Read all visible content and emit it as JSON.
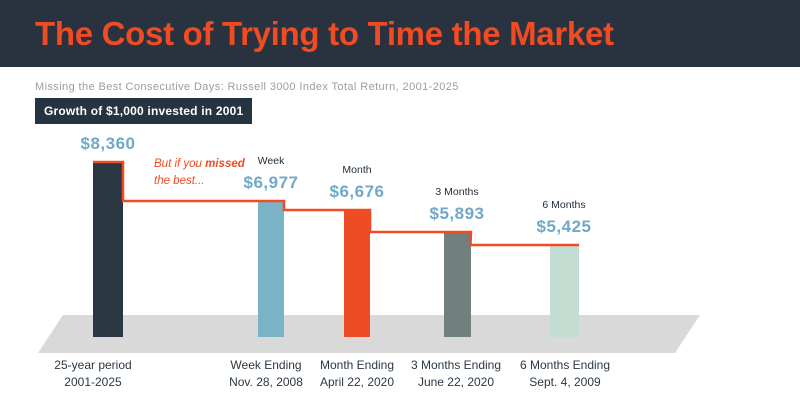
{
  "header": {
    "bg_color": "#28333f",
    "title_color": "#f04b23"
  },
  "annotation": {
    "prefix": "But if you ",
    "bold": "missed",
    "suffix": " the best...",
    "color": "#f04b23"
  },
  "chart_data": {
    "type": "bar",
    "title": "The Cost of Trying to Time the Market",
    "subtitle": "Missing the Best Consecutive Days: Russell 3000 Index Total Return, 2001-2025",
    "note": "Growth of $1,000 invested in 2001",
    "categories": [
      [
        "25-year period",
        "2001-2025"
      ],
      [
        "Week Ending",
        "Nov. 28, 2008"
      ],
      [
        "Month Ending",
        "April 22, 2020"
      ],
      [
        "3 Months Ending",
        "June 22, 2020"
      ],
      [
        "6 Months Ending",
        "Sept. 4, 2009"
      ]
    ],
    "period_labels": [
      "",
      "Week",
      "Month",
      "3 Months",
      "6 Months"
    ],
    "values": [
      8360,
      6977,
      6676,
      5893,
      5425
    ],
    "value_labels": [
      "$8,360",
      "$6,977",
      "$6,676",
      "$5,893",
      "$5,425"
    ],
    "bar_colors": [
      "#2a3642",
      "#7ab2c7",
      "#ee4c24",
      "#70807d",
      "#c3ddd2"
    ],
    "step_line_color": "#f04b23",
    "floor_color": "#d9d9d9",
    "value_label_color": "#6fa9c7",
    "legend_position": "none",
    "grid": false,
    "ylim": [
      5000,
      8600
    ]
  }
}
